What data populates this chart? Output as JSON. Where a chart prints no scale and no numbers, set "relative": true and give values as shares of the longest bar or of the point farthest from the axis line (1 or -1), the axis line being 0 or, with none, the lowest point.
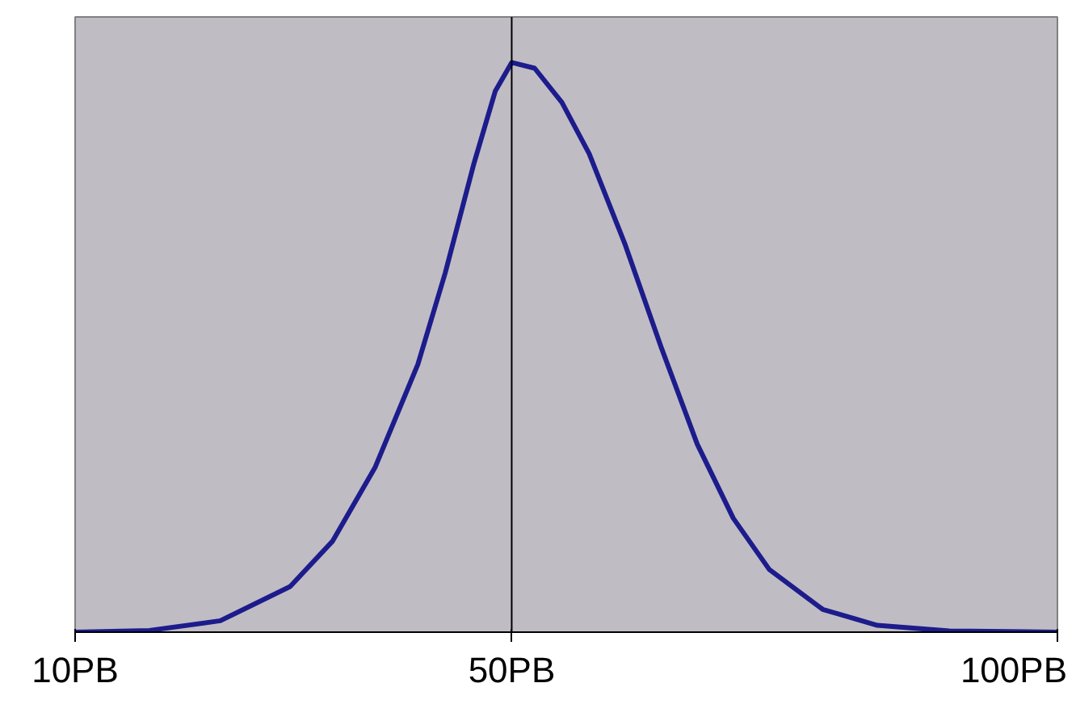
{
  "chart_data": {
    "type": "line",
    "relative": true,
    "x": [
      10,
      16.8,
      23.3,
      29.7,
      33.6,
      37.5,
      41.4,
      43.9,
      46.5,
      48.5,
      50,
      52.1,
      54.6,
      57.1,
      60.4,
      63.7,
      67.0,
      70.3,
      73.6,
      78.5,
      83.5,
      90.1,
      100
    ],
    "series": [
      {
        "color": "#1c1c8c",
        "values": [
          0,
          0.003,
          0.02,
          0.08,
          0.16,
          0.29,
          0.47,
          0.63,
          0.82,
          0.95,
          1.0,
          0.99,
          0.93,
          0.84,
          0.68,
          0.5,
          0.33,
          0.2,
          0.11,
          0.04,
          0.012,
          0.002,
          0
        ]
      }
    ],
    "xlim": [
      10,
      100
    ],
    "xticks": [
      {
        "value": 10,
        "label": "10PB"
      },
      {
        "value": 50,
        "label": "50PB"
      },
      {
        "value": 100,
        "label": "100PB"
      }
    ],
    "ref_lines": [
      {
        "axis": "x",
        "value": 50,
        "color": "#000000"
      }
    ],
    "grid": false,
    "tick_labels": "x"
  }
}
